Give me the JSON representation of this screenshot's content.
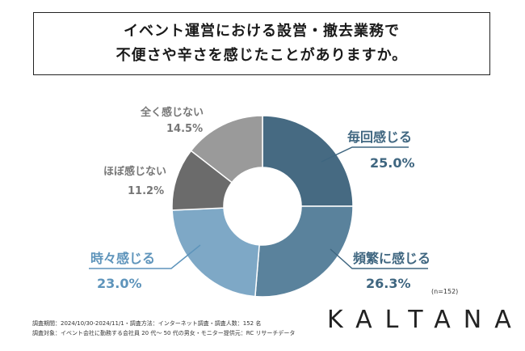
{
  "title": {
    "line1": "イベント運営における設営・撤去業務で",
    "line2": "不便さや辛さを感じたことがありますか。"
  },
  "chart_data": {
    "type": "pie",
    "variant": "donut",
    "categories": [
      "毎回感じる",
      "頻繁に感じる",
      "時々感じる",
      "ほぼ感じない",
      "全く感じない"
    ],
    "values": [
      25.0,
      26.3,
      23.0,
      11.2,
      14.5
    ],
    "labels": [
      "25.0%",
      "26.3%",
      "23.0%",
      "11.2%",
      "14.5%"
    ],
    "colors": [
      "#466a82",
      "#5a829c",
      "#7ea8c6",
      "#6b6b6b",
      "#9a9a9a"
    ],
    "label_colors": [
      "#3f6680",
      "#3f6680",
      "#5e94bb",
      "#777777",
      "#777777"
    ]
  },
  "note_n": "(n=152)",
  "footnote": {
    "line1": "調査期間：2024/10/30-2024/11/1・調査方法：インターネット調査・調査人数：152 名",
    "line2": "調査対象：イベント会社に勤務する会社員 20 代〜 50 代の男女・モニター提供元：RC リサーチデータ"
  },
  "logo": "KALTANA"
}
